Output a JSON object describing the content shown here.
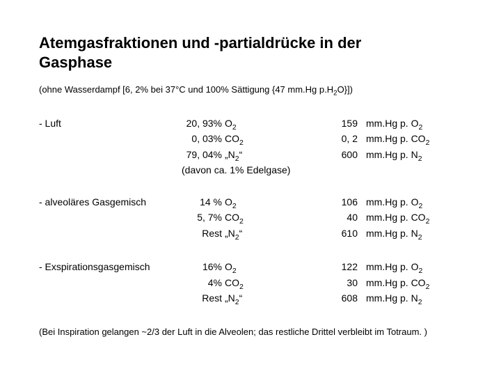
{
  "title_line1": "Atemgasfraktionen und -partialdrücke in der",
  "title_line2": "Gasphase",
  "subtitle_pre": "(ohne Wasserdampf [6, 2% bei 37°C und 100% Sättigung {47 mm.Hg p.H",
  "subtitle_sub": "2",
  "subtitle_post": "O}])",
  "rows": [
    {
      "label": "- Luft",
      "mid": [
        {
          "pct": "20, 93%",
          "gas_pre": "O",
          "gas_sub": "2",
          "gas_post": ""
        },
        {
          "pct": "0, 03%",
          "gas_pre": "CO",
          "gas_sub": "2",
          "gas_post": ""
        },
        {
          "pct": "79, 04%",
          "gas_pre": "„N",
          "gas_sub": "2",
          "gas_post": "“"
        }
      ],
      "mid_extra": "(davon ca. 1% Edelgase)",
      "right": [
        {
          "num": "159",
          "unit_pre": "mm.Hg p. O",
          "unit_sub": "2",
          "unit_post": ""
        },
        {
          "num": "0, 2",
          "unit_pre": "mm.Hg p. CO",
          "unit_sub": "2",
          "unit_post": ""
        },
        {
          "num": "600",
          "unit_pre": "mm.Hg p. N",
          "unit_sub": "2",
          "unit_post": ""
        }
      ]
    },
    {
      "label": "- alveoläres Gasgemisch",
      "mid": [
        {
          "pct": "14   %",
          "gas_pre": "O",
          "gas_sub": "2",
          "gas_post": ""
        },
        {
          "pct": "5, 7%",
          "gas_pre": "CO",
          "gas_sub": "2",
          "gas_post": ""
        },
        {
          "pct": "Rest  ",
          "gas_pre": "„N",
          "gas_sub": "2",
          "gas_post": "“"
        }
      ],
      "mid_extra": "",
      "right": [
        {
          "num": "106",
          "unit_pre": "mm.Hg p. O",
          "unit_sub": "2",
          "unit_post": ""
        },
        {
          "num": "40",
          "unit_pre": "mm.Hg p. CO",
          "unit_sub": "2",
          "unit_post": ""
        },
        {
          "num": "610",
          "unit_pre": "mm.Hg p. N",
          "unit_sub": "2",
          "unit_post": ""
        }
      ]
    },
    {
      "label": "- Exspirationsgasgemisch",
      "mid": [
        {
          "pct": "16%",
          "gas_pre": "O",
          "gas_sub": "2",
          "gas_post": ""
        },
        {
          "pct": "4%",
          "gas_pre": "CO",
          "gas_sub": "2",
          "gas_post": ""
        },
        {
          "pct": "Rest ",
          "gas_pre": "„N",
          "gas_sub": "2",
          "gas_post": "“"
        }
      ],
      "mid_extra": "",
      "right": [
        {
          "num": "122",
          "unit_pre": "mm.Hg p. O",
          "unit_sub": "2",
          "unit_post": ""
        },
        {
          "num": "30",
          "unit_pre": "mm.Hg p. CO",
          "unit_sub": "2",
          "unit_post": ""
        },
        {
          "num": "608",
          "unit_pre": "mm.Hg p. N",
          "unit_sub": "2",
          "unit_post": ""
        }
      ]
    }
  ],
  "footnote": "(Bei Inspiration gelangen ~2/3 der Luft in die Alveolen; das restliche Drittel verbleibt im Totraum. )"
}
